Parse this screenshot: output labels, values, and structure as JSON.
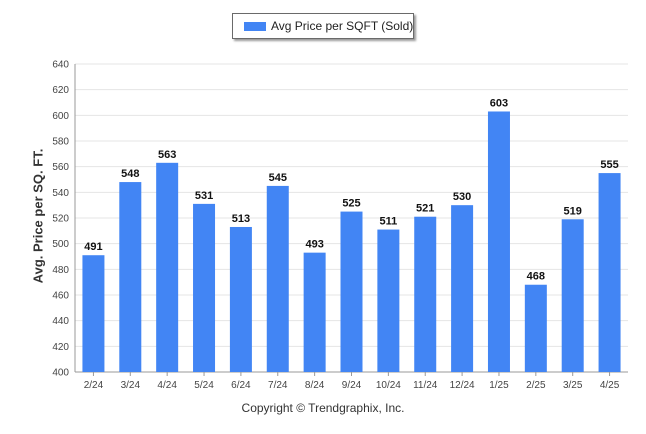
{
  "legend": {
    "label": "Avg Price per SQFT (Sold)"
  },
  "copyright": "Copyright © Trendgraphix, Inc.",
  "colors": {
    "bar": "#4285f4",
    "grid": "#e4e4e4",
    "axis": "#999999"
  },
  "chart_data": {
    "type": "bar",
    "categories": [
      "2/24",
      "3/24",
      "4/24",
      "5/24",
      "6/24",
      "7/24",
      "8/24",
      "9/24",
      "10/24",
      "11/24",
      "12/24",
      "1/25",
      "2/25",
      "3/25",
      "4/25"
    ],
    "series": [
      {
        "name": "Avg Price per SQFT (Sold)",
        "values": [
          491,
          548,
          563,
          531,
          513,
          545,
          493,
          525,
          511,
          521,
          530,
          603,
          468,
          519,
          555
        ]
      }
    ],
    "ylabel": "Avg. Price per SQ. FT.",
    "xlabel": "",
    "ylim": [
      400,
      640
    ],
    "yticks": [
      400,
      420,
      440,
      460,
      480,
      500,
      520,
      540,
      560,
      580,
      600,
      620,
      640
    ],
    "grid": true,
    "legend_position": "top-center"
  }
}
